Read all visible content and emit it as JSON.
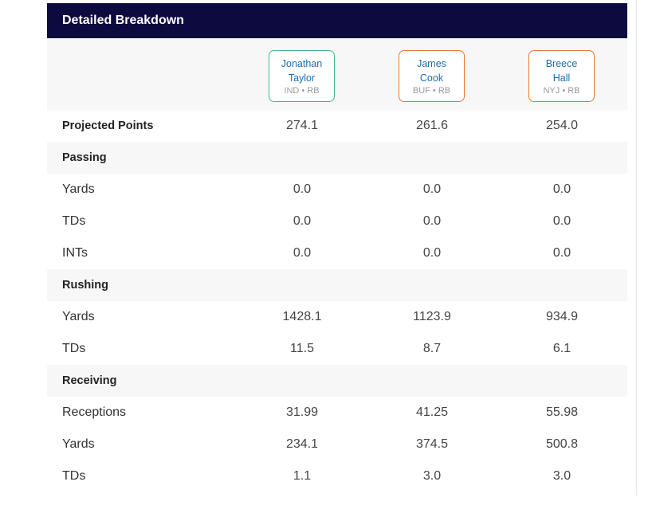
{
  "header": {
    "title": "Detailed Breakdown"
  },
  "players": [
    {
      "name": "Jonathan\nTaylor",
      "team": "IND • RB",
      "color": "#3cb98f"
    },
    {
      "name": "James\nCook",
      "team": "BUF • RB",
      "color": "#e9772e"
    },
    {
      "name": "Breece\nHall",
      "team": "NYJ • RB",
      "color": "#e9772e"
    }
  ],
  "rows": {
    "projected": {
      "label": "Projected Points",
      "values": [
        "274.1",
        "261.6",
        "254.0"
      ]
    },
    "passing_section": {
      "label": "Passing"
    },
    "passing_yards": {
      "label": "Yards",
      "values": [
        "0.0",
        "0.0",
        "0.0"
      ]
    },
    "passing_tds": {
      "label": "TDs",
      "values": [
        "0.0",
        "0.0",
        "0.0"
      ]
    },
    "passing_ints": {
      "label": "INTs",
      "values": [
        "0.0",
        "0.0",
        "0.0"
      ]
    },
    "rushing_section": {
      "label": "Rushing"
    },
    "rushing_yards": {
      "label": "Yards",
      "values": [
        "1428.1",
        "1123.9",
        "934.9"
      ]
    },
    "rushing_tds": {
      "label": "TDs",
      "values": [
        "11.5",
        "8.7",
        "6.1"
      ]
    },
    "receiving_section": {
      "label": "Receiving"
    },
    "receptions": {
      "label": "Receptions",
      "values": [
        "31.99",
        "41.25",
        "55.98"
      ]
    },
    "receiving_yards": {
      "label": "Yards",
      "values": [
        "234.1",
        "374.5",
        "500.8"
      ]
    },
    "receiving_tds": {
      "label": "TDs",
      "values": [
        "1.1",
        "3.0",
        "3.0"
      ]
    }
  }
}
